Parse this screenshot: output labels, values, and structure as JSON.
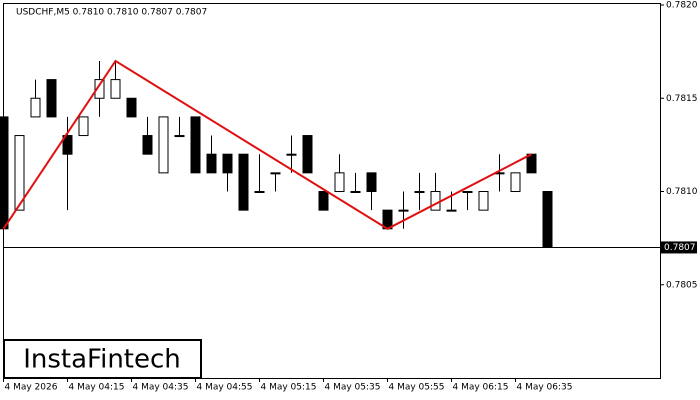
{
  "chart_data": {
    "type": "candlestick",
    "title": "USDCHF,M5  0.7810 0.7810 0.7807 0.7807",
    "categories": [
      "4 May 2026",
      null,
      null,
      null,
      "4 May 04:15",
      null,
      null,
      null,
      "4 May 04:35",
      null,
      null,
      null,
      "4 May 04:55",
      null,
      null,
      null,
      "4 May 05:15",
      null,
      null,
      null,
      "4 May 05:35",
      null,
      null,
      null,
      "4 May 05:55",
      null,
      null,
      null,
      "4 May 06:15",
      null,
      null,
      null,
      "4 May 06:35",
      null,
      null
    ],
    "open": [
      0.7814,
      0.7809,
      0.7814,
      0.7816,
      0.7813,
      0.7813,
      0.7815,
      0.7815,
      0.7815,
      0.7813,
      0.7811,
      0.7813,
      0.7814,
      0.7812,
      0.7812,
      0.7812,
      0.781,
      0.7811,
      0.7812,
      0.7813,
      0.781,
      0.781,
      0.781,
      0.7811,
      0.7809,
      0.7809,
      0.781,
      0.7809,
      0.7809,
      0.781,
      0.7809,
      0.7811,
      0.781,
      0.7812,
      0.781
    ],
    "high": [
      0.7814,
      0.7813,
      0.7816,
      0.7816,
      0.7814,
      0.7814,
      0.7817,
      0.7817,
      0.7815,
      0.7814,
      0.7814,
      0.7814,
      0.7814,
      0.7813,
      0.7812,
      0.7812,
      0.7812,
      0.7811,
      0.7813,
      0.7813,
      0.781,
      0.7812,
      0.7811,
      0.7811,
      0.7809,
      0.781,
      0.7811,
      0.7811,
      0.781,
      0.781,
      0.781,
      0.7812,
      0.7811,
      0.7812,
      0.781
    ],
    "low": [
      0.7808,
      0.7809,
      0.7814,
      0.7814,
      0.7809,
      0.7813,
      0.7814,
      0.7815,
      0.7814,
      0.7812,
      0.7811,
      0.7813,
      0.7811,
      0.7811,
      0.781,
      0.7809,
      0.781,
      0.781,
      0.7811,
      0.7811,
      0.7809,
      0.781,
      0.781,
      0.7809,
      0.7808,
      0.7808,
      0.7809,
      0.7809,
      0.7809,
      0.7809,
      0.7809,
      0.781,
      0.781,
      0.7811,
      0.7807
    ],
    "close": [
      0.7808,
      0.7813,
      0.7815,
      0.7814,
      0.7812,
      0.7814,
      0.7816,
      0.7816,
      0.7814,
      0.7812,
      0.7814,
      0.7813,
      0.7811,
      0.7811,
      0.7811,
      0.7809,
      0.781,
      0.7811,
      0.7812,
      0.7811,
      0.7809,
      0.7811,
      0.781,
      0.781,
      0.7808,
      0.7809,
      0.781,
      0.781,
      0.7809,
      0.781,
      0.781,
      0.7811,
      0.7811,
      0.7811,
      0.7807
    ],
    "up_color": "#ffffff",
    "down_color": "#000000",
    "pattern": {
      "color": "#e01010",
      "x": [
        0,
        7,
        24,
        33
      ],
      "values": [
        0.7808,
        0.7817,
        0.7808,
        0.7812
      ]
    },
    "current_price": 0.7807,
    "ylim": [
      0.78,
      0.782
    ],
    "yticks": [
      {
        "value": 0.782,
        "label": "0.7820"
      },
      0.7815,
      {
        "value": 0.781,
        "label": "0.7810"
      },
      0.7805
    ],
    "grid": false,
    "watermark": "InstaFintech"
  }
}
